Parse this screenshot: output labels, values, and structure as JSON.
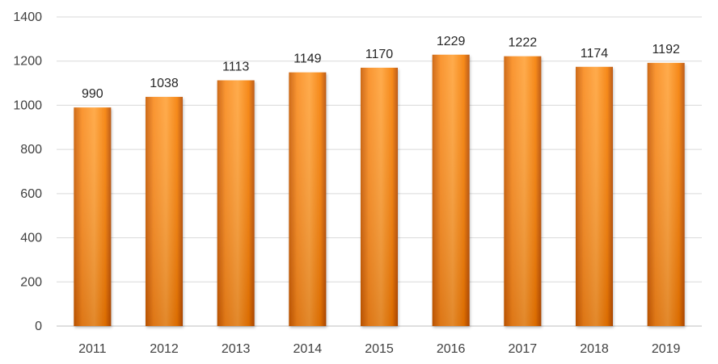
{
  "chart_data": {
    "type": "bar",
    "title": "",
    "xlabel": "",
    "ylabel": "",
    "categories": [
      "2011",
      "2012",
      "2013",
      "2014",
      "2015",
      "2016",
      "2017",
      "2018",
      "2019"
    ],
    "values": [
      990,
      1038,
      1113,
      1149,
      1170,
      1229,
      1222,
      1174,
      1192
    ],
    "data_labels": [
      "990",
      "1038",
      "1113",
      "1149",
      "1170",
      "1229",
      "1222",
      "1174",
      "1192"
    ],
    "ylim": [
      0,
      1400
    ],
    "yticks": [
      0,
      200,
      400,
      600,
      800,
      1000,
      1200,
      1400
    ],
    "ytick_labels": [
      "0",
      "200",
      "400",
      "600",
      "800",
      "1000",
      "1200",
      "1400"
    ],
    "grid": true,
    "legend": "none",
    "colors": {
      "bar_light": "#FFA238",
      "bar_mid": "#F57C00",
      "bar_dark": "#B44A00",
      "grid": "#D9D9D9",
      "text": "#404040"
    }
  }
}
